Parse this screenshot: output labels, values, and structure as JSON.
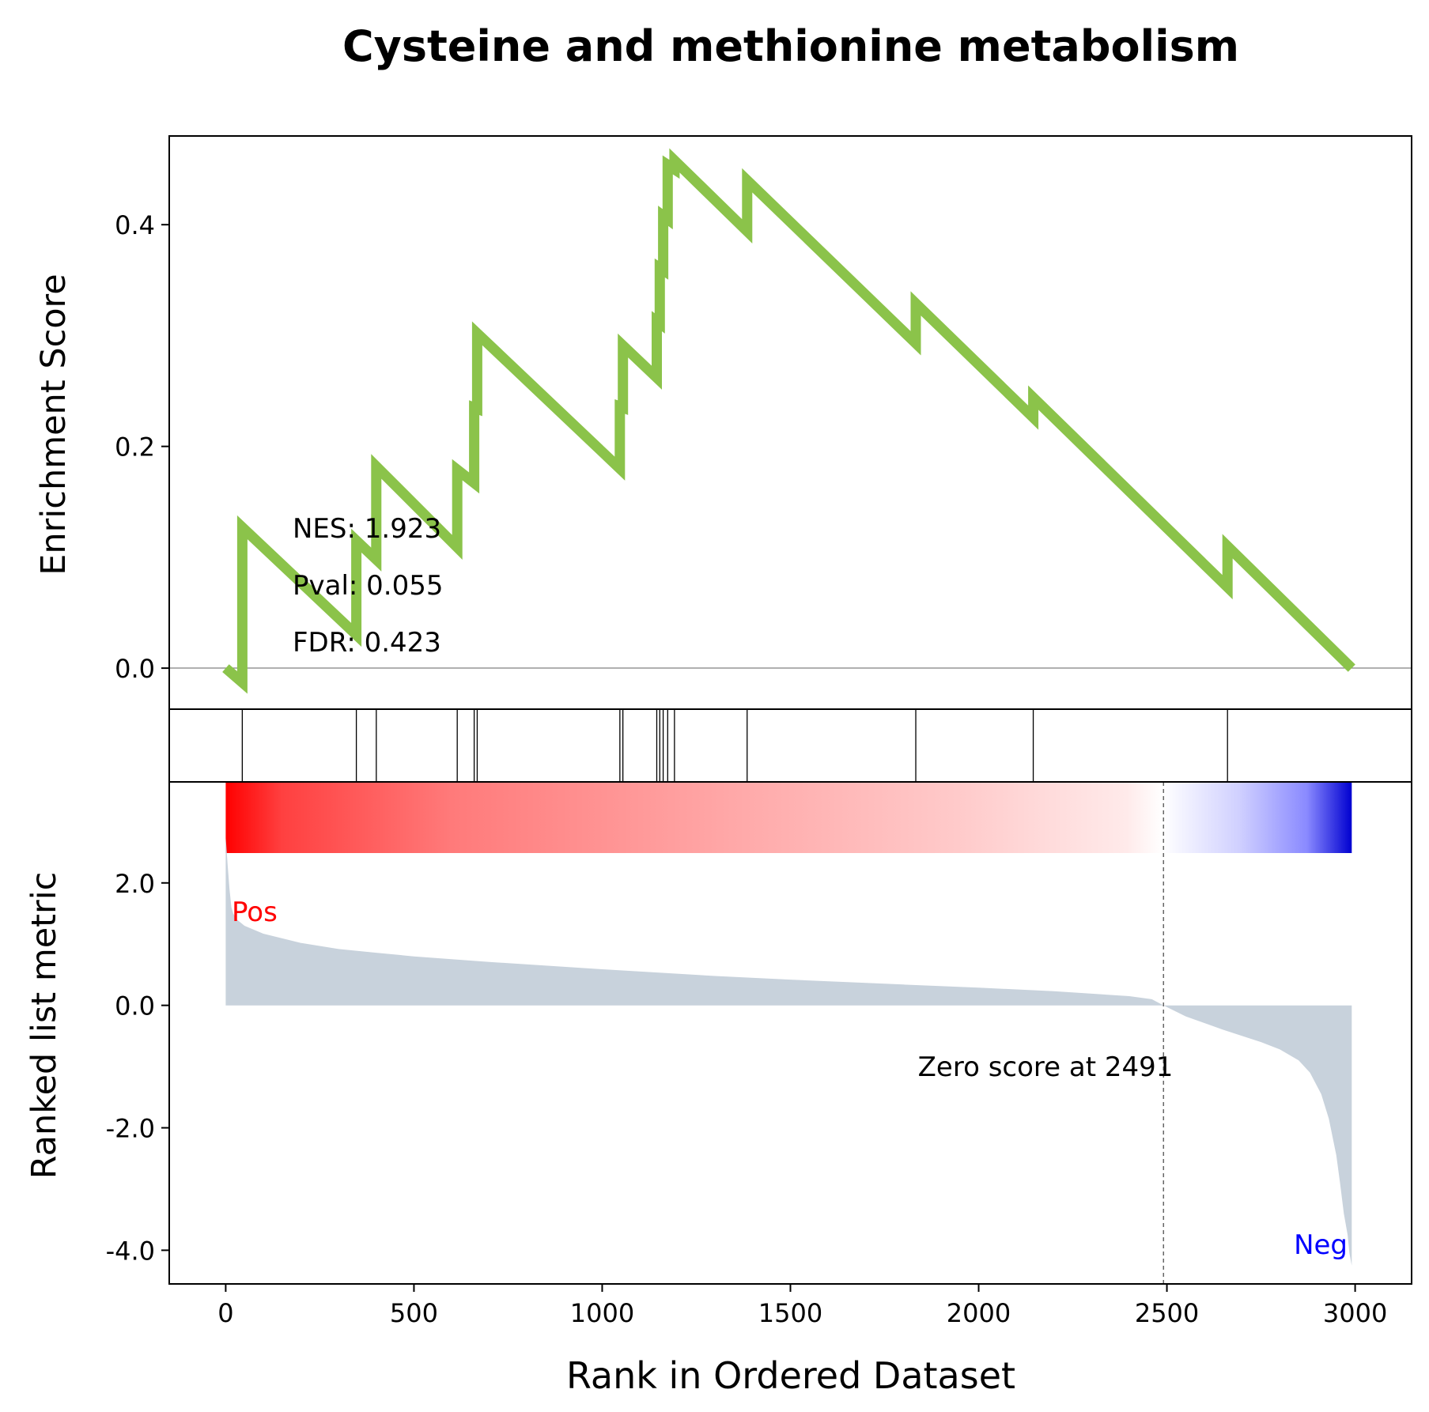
{
  "chart_data": {
    "type": "line",
    "title": "Cysteine and methionine metabolism",
    "xlabel": "Rank in Ordered Dataset",
    "xlim": [
      -150,
      3150
    ],
    "xticks": [
      0,
      500,
      1000,
      1500,
      2000,
      2500,
      3000
    ],
    "xtick_labels": [
      "0",
      "500",
      "1000",
      "1500",
      "2000",
      "2500",
      "3000"
    ],
    "es_panel": {
      "ylabel": "Enrichment Score",
      "ylim": [
        -0.037,
        0.48
      ],
      "yticks": [
        0.0,
        0.2,
        0.4
      ],
      "ytick_labels": [
        "0.0",
        "0.2",
        "0.4"
      ],
      "line_color": "#8bc34a",
      "stats": {
        "nes": "NES: 1.923",
        "pval": "Pval: 0.055",
        "fdr": "FDR: 0.423"
      },
      "hit_ranks": [
        44,
        347,
        400,
        615,
        660,
        668,
        1047,
        1055,
        1145,
        1153,
        1162,
        1174,
        1192,
        1385,
        1833,
        2145,
        2661
      ],
      "hit_deltas": [
        0.14,
        0.085,
        0.084,
        0.07,
        0.068,
        0.068,
        0.056,
        0.056,
        0.051,
        0.05,
        0.049,
        0.049,
        0.048,
        0.046,
        0.036,
        0.028,
        0.04
      ],
      "es_series": {
        "x": [
          0,
          44,
          44,
          347,
          347,
          400,
          400,
          615,
          615,
          660,
          660,
          668,
          668,
          1047,
          1047,
          1055,
          1055,
          1145,
          1145,
          1153,
          1153,
          1162,
          1162,
          1174,
          1174,
          1192,
          1192,
          1385,
          1385,
          1833,
          1833,
          2145,
          2145,
          2661,
          2661,
          2991
        ],
        "y": [
          0.0,
          -0.013,
          0.127,
          0.03,
          0.115,
          0.098,
          0.182,
          0.109,
          0.179,
          0.167,
          0.235,
          0.234,
          0.302,
          0.18,
          0.236,
          0.235,
          0.291,
          0.262,
          0.313,
          0.311,
          0.361,
          0.359,
          0.408,
          0.405,
          0.454,
          0.45,
          0.458,
          0.394,
          0.44,
          0.293,
          0.329,
          0.226,
          0.244,
          0.073,
          0.11,
          0.0
        ]
      }
    },
    "ranked_panel": {
      "ylabel": "Ranked list metric",
      "ylim": [
        -4.55,
        3.65
      ],
      "yticks": [
        2.0,
        0.0,
        -2.0,
        -4.0
      ],
      "ytick_labels": [
        "2.0",
        "0.0",
        "-2.0",
        "-4.0"
      ],
      "fill_color": "#c8d2dc",
      "pos_label": "Pos",
      "neg_label": "Neg",
      "pos_color": "#ff0000",
      "neg_color": "#0000ff",
      "zero_cross_label": "Zero score at 2491",
      "zero_cross_rank": 2491,
      "n_ranks": 2991,
      "metric_curve": {
        "x": [
          0,
          5,
          10,
          15,
          20,
          30,
          50,
          100,
          200,
          300,
          400,
          500,
          700,
          1000,
          1300,
          1500,
          1800,
          2000,
          2200,
          2400,
          2460,
          2491,
          2550,
          2650,
          2750,
          2800,
          2850,
          2880,
          2910,
          2930,
          2950,
          2960,
          2970,
          2980,
          2985,
          2991
        ],
        "y": [
          2.75,
          2.3,
          1.9,
          1.6,
          1.5,
          1.4,
          1.3,
          1.17,
          1.02,
          0.92,
          0.86,
          0.8,
          0.71,
          0.59,
          0.48,
          0.42,
          0.34,
          0.29,
          0.23,
          0.15,
          0.1,
          0.0,
          -0.18,
          -0.4,
          -0.6,
          -0.72,
          -0.9,
          -1.1,
          -1.45,
          -1.85,
          -2.45,
          -2.9,
          -3.4,
          -3.75,
          -4.05,
          -4.25
        ]
      }
    },
    "colorbar": {
      "stops": [
        {
          "offset": 0.0,
          "color": "#ff0000"
        },
        {
          "offset": 0.05,
          "color": "#ff4040"
        },
        {
          "offset": 0.2,
          "color": "#ff7a7a"
        },
        {
          "offset": 0.45,
          "color": "#ffa8a8"
        },
        {
          "offset": 0.65,
          "color": "#ffcaca"
        },
        {
          "offset": 0.8,
          "color": "#ffeaea"
        },
        {
          "offset": 0.832,
          "color": "#ffffff"
        },
        {
          "offset": 0.9,
          "color": "#d0d0ff"
        },
        {
          "offset": 0.96,
          "color": "#8a8aff"
        },
        {
          "offset": 1.0,
          "color": "#0000d0"
        }
      ]
    }
  }
}
